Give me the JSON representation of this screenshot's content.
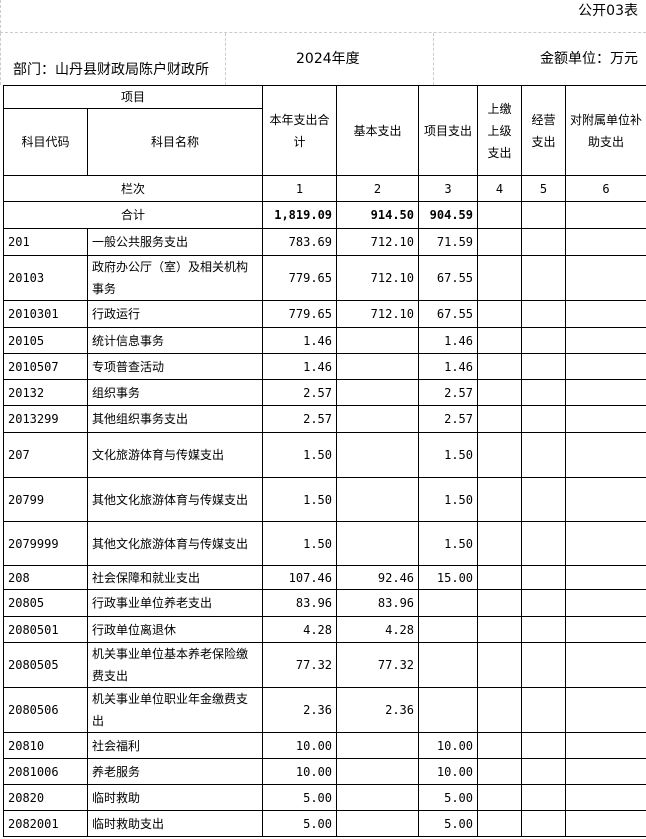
{
  "table_no": "公开03表",
  "department": "部门：山丹县财政局陈户财政所",
  "year": "2024年度",
  "unit": "金额单位：万元",
  "headers": {
    "item": "项目",
    "code": "科目代码",
    "name": "科目名称",
    "total": "本年支出合计",
    "basic": "基本支出",
    "project": "项目支出",
    "upper": "上缴上级支出",
    "business": "经营支出",
    "affiliated": "对附属单位补助支出",
    "column_index": "栏次",
    "idx": [
      "1",
      "2",
      "3",
      "4",
      "5",
      "6"
    ]
  },
  "total_row": {
    "label": "合计",
    "total": "1,819.09",
    "basic": "914.50",
    "project": "904.59"
  },
  "rows": [
    {
      "code": "201",
      "name": "一般公共服务支出",
      "total": "783.69",
      "basic": "712.10",
      "project": "71.59"
    },
    {
      "code": "20103",
      "name": "政府办公厅（室）及相关机构事务",
      "total": "779.65",
      "basic": "712.10",
      "project": "67.55"
    },
    {
      "code": "2010301",
      "name": "行政运行",
      "total": "779.65",
      "basic": "712.10",
      "project": "67.55"
    },
    {
      "code": "20105",
      "name": "统计信息事务",
      "total": "1.46",
      "basic": "",
      "project": "1.46"
    },
    {
      "code": "2010507",
      "name": "专项普查活动",
      "total": "1.46",
      "basic": "",
      "project": "1.46"
    },
    {
      "code": "20132",
      "name": "组织事务",
      "total": "2.57",
      "basic": "",
      "project": "2.57"
    },
    {
      "code": "2013299",
      "name": "其他组织事务支出",
      "total": "2.57",
      "basic": "",
      "project": "2.57"
    },
    {
      "code": "207",
      "name": "文化旅游体育与传媒支出",
      "total": "1.50",
      "basic": "",
      "project": "1.50"
    },
    {
      "code": "20799",
      "name": "其他文化旅游体育与传媒支出",
      "total": "1.50",
      "basic": "",
      "project": "1.50"
    },
    {
      "code": "2079999",
      "name": "其他文化旅游体育与传媒支出",
      "total": "1.50",
      "basic": "",
      "project": "1.50"
    },
    {
      "code": "208",
      "name": "社会保障和就业支出",
      "total": "107.46",
      "basic": "92.46",
      "project": "15.00"
    },
    {
      "code": "20805",
      "name": "行政事业单位养老支出",
      "total": "83.96",
      "basic": "83.96",
      "project": ""
    },
    {
      "code": "2080501",
      "name": "行政单位离退休",
      "total": "4.28",
      "basic": "4.28",
      "project": ""
    },
    {
      "code": "2080505",
      "name": "机关事业单位基本养老保险缴费支出",
      "total": "77.32",
      "basic": "77.32",
      "project": ""
    },
    {
      "code": "2080506",
      "name": "机关事业单位职业年金缴费支出",
      "total": "2.36",
      "basic": "2.36",
      "project": ""
    },
    {
      "code": "20810",
      "name": "社会福利",
      "total": "10.00",
      "basic": "",
      "project": "10.00"
    },
    {
      "code": "2081006",
      "name": "养老服务",
      "total": "10.00",
      "basic": "",
      "project": "10.00"
    },
    {
      "code": "20820",
      "name": "临时救助",
      "total": "5.00",
      "basic": "",
      "project": "5.00"
    },
    {
      "code": "2082001",
      "name": "临时救助支出",
      "total": "5.00",
      "basic": "",
      "project": "5.00"
    }
  ]
}
